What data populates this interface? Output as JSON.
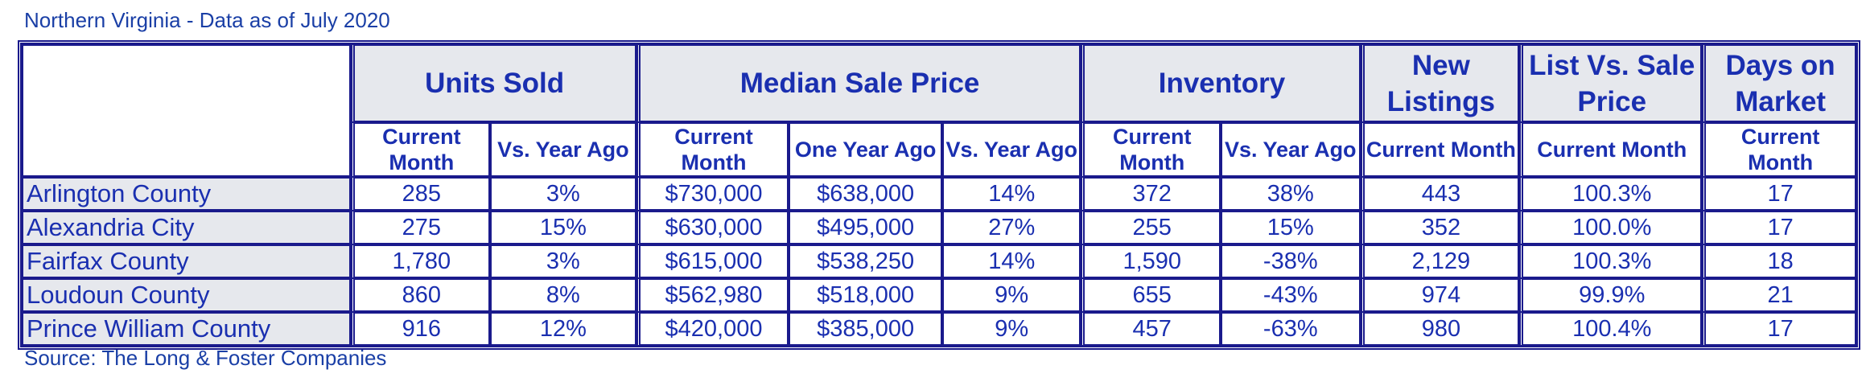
{
  "title": "Northern Virginia - Data as of July 2020",
  "source": "Source: The Long & Foster Companies",
  "groups": {
    "units_sold": "Units Sold",
    "median_sale_price": "Median Sale Price",
    "inventory": "Inventory",
    "new_listings": "New Listings",
    "list_vs_sale": "List Vs. Sale Price",
    "days_on_market": "Days on Market"
  },
  "subheaders": {
    "current_month": "Current Month",
    "vs_year_ago": "Vs. Year Ago",
    "one_year_ago": "One Year Ago"
  },
  "rows": [
    {
      "name": "Arlington County",
      "units_current": "285",
      "units_vs": "3%",
      "price_current": "$730,000",
      "price_year_ago": "$638,000",
      "price_vs": "14%",
      "inv_current": "372",
      "inv_vs": "38%",
      "new_listings": "443",
      "list_vs_sale": "100.3%",
      "dom": "17"
    },
    {
      "name": "Alexandria City",
      "units_current": "275",
      "units_vs": "15%",
      "price_current": "$630,000",
      "price_year_ago": "$495,000",
      "price_vs": "27%",
      "inv_current": "255",
      "inv_vs": "15%",
      "new_listings": "352",
      "list_vs_sale": "100.0%",
      "dom": "17"
    },
    {
      "name": "Fairfax County",
      "units_current": "1,780",
      "units_vs": "3%",
      "price_current": "$615,000",
      "price_year_ago": "$538,250",
      "price_vs": "14%",
      "inv_current": "1,590",
      "inv_vs": "-38%",
      "new_listings": "2,129",
      "list_vs_sale": "100.3%",
      "dom": "18"
    },
    {
      "name": "Loudoun County",
      "units_current": "860",
      "units_vs": "8%",
      "price_current": "$562,980",
      "price_year_ago": "$518,000",
      "price_vs": "9%",
      "inv_current": "655",
      "inv_vs": "-43%",
      "new_listings": "974",
      "list_vs_sale": "99.9%",
      "dom": "21"
    },
    {
      "name": "Prince William County",
      "units_current": "916",
      "units_vs": "12%",
      "price_current": "$420,000",
      "price_year_ago": "$385,000",
      "price_vs": "9%",
      "inv_current": "457",
      "inv_vs": "-63%",
      "new_listings": "980",
      "list_vs_sale": "100.4%",
      "dom": "17"
    }
  ]
}
